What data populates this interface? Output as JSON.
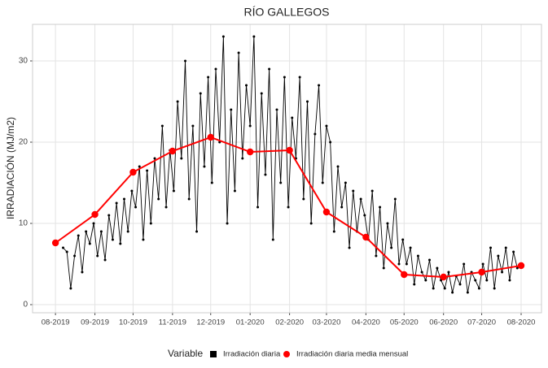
{
  "chart_data": {
    "type": "line",
    "title": "RÍO GALLEGOS",
    "ylabel": "IRRADIACIÓN (MJ/m2)",
    "legend_title": "Variable",
    "legend_position": "bottom",
    "grid": true,
    "xlim": [
      -18,
      382
    ],
    "ylim": [
      -1,
      34.5
    ],
    "yticks": [
      0,
      10,
      20,
      30
    ],
    "xticks": [
      {
        "value": 0,
        "label": "08-2019"
      },
      {
        "value": 31,
        "label": "09-2019"
      },
      {
        "value": 61,
        "label": "10-2019"
      },
      {
        "value": 92,
        "label": "11-2019"
      },
      {
        "value": 122,
        "label": "12-2019"
      },
      {
        "value": 153,
        "label": "01-2020"
      },
      {
        "value": 184,
        "label": "02-2020"
      },
      {
        "value": 213,
        "label": "03-2020"
      },
      {
        "value": 244,
        "label": "04-2020"
      },
      {
        "value": 274,
        "label": "05-2020"
      },
      {
        "value": 305,
        "label": "06-2020"
      },
      {
        "value": 335,
        "label": "07-2020"
      },
      {
        "value": 366,
        "label": "08-2020"
      }
    ],
    "series": [
      {
        "name": "Irradiación diaria",
        "color": "#000000",
        "x": [
          6,
          9,
          12,
          15,
          18,
          21,
          24,
          27,
          30,
          33,
          36,
          39,
          42,
          45,
          48,
          51,
          54,
          57,
          60,
          63,
          66,
          69,
          72,
          75,
          78,
          81,
          84,
          87,
          90,
          93,
          96,
          99,
          102,
          105,
          108,
          111,
          114,
          117,
          120,
          123,
          126,
          129,
          132,
          135,
          138,
          141,
          144,
          147,
          150,
          153,
          156,
          159,
          162,
          165,
          168,
          171,
          174,
          177,
          180,
          183,
          186,
          189,
          192,
          195,
          198,
          201,
          204,
          207,
          210,
          213,
          216,
          219,
          222,
          225,
          228,
          231,
          234,
          237,
          240,
          243,
          246,
          249,
          252,
          255,
          258,
          261,
          264,
          267,
          270,
          273,
          276,
          279,
          282,
          285,
          288,
          291,
          294,
          297,
          300,
          303,
          306,
          309,
          312,
          315,
          318,
          321,
          324,
          327,
          330,
          333,
          336,
          339,
          342,
          345,
          348,
          351,
          354,
          357,
          360,
          363
        ],
        "values": [
          7,
          6.5,
          2,
          6,
          8.5,
          4,
          9,
          7.5,
          10,
          6,
          9,
          5.5,
          11,
          8,
          12.5,
          7.5,
          13,
          9,
          14,
          12,
          17,
          8,
          16.5,
          10,
          18,
          13,
          22,
          12,
          19,
          14,
          25,
          18,
          30,
          13,
          22,
          9,
          26,
          17,
          28,
          15,
          29,
          20,
          33,
          10,
          24,
          14,
          31,
          18,
          27,
          22,
          33,
          12,
          26,
          16,
          29,
          8,
          24,
          15,
          28,
          12,
          23,
          18,
          28,
          13,
          25,
          10,
          21,
          27,
          15,
          22,
          20,
          9,
          17,
          12,
          15,
          7,
          14,
          9,
          13,
          11,
          8,
          14,
          6,
          12,
          4.5,
          10,
          7,
          13,
          5,
          8,
          5,
          7,
          2.5,
          6,
          4,
          3,
          5.5,
          2,
          4.5,
          3,
          2,
          4,
          1.5,
          3.5,
          2.5,
          5,
          1.5,
          4,
          3,
          2,
          5,
          3,
          7,
          2,
          6,
          4,
          7,
          3,
          6.5,
          4.5
        ]
      },
      {
        "name": "Irradiación diaria media mensual",
        "color": "#ff0000",
        "x": [
          0,
          31,
          61,
          92,
          122,
          153,
          184,
          213,
          244,
          274,
          305,
          335,
          366
        ],
        "values": [
          7.6,
          11.1,
          16.3,
          18.9,
          20.6,
          18.8,
          19.0,
          11.4,
          8.3,
          3.7,
          3.4,
          4.0,
          4.8
        ]
      }
    ]
  }
}
